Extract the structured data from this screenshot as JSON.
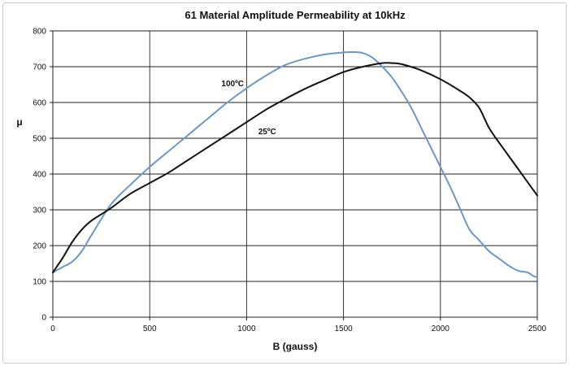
{
  "chart_data": {
    "type": "line",
    "title": "61 Material Amplitude Permeability at 10kHz",
    "xlabel": "B  (gauss)",
    "ylabel": "μ",
    "xlim": [
      0,
      2500
    ],
    "ylim": [
      0,
      800
    ],
    "xticks": [
      0,
      500,
      1000,
      1500,
      2000,
      2500
    ],
    "yticks": [
      0,
      100,
      200,
      300,
      400,
      500,
      600,
      700,
      800
    ],
    "grid": true,
    "series": [
      {
        "name": "100ºC",
        "color": "#6f97c4",
        "x": [
          0,
          50,
          100,
          150,
          200,
          300,
          400,
          500,
          600,
          700,
          800,
          900,
          1000,
          1100,
          1200,
          1300,
          1400,
          1500,
          1550,
          1600,
          1650,
          1700,
          1750,
          1800,
          1850,
          1900,
          1950,
          2000,
          2050,
          2100,
          2150,
          2200,
          2250,
          2300,
          2350,
          2400,
          2450,
          2480,
          2500
        ],
        "y": [
          125,
          140,
          155,
          185,
          230,
          315,
          370,
          420,
          465,
          510,
          555,
          600,
          640,
          675,
          705,
          722,
          734,
          740,
          741,
          738,
          725,
          700,
          670,
          630,
          585,
          530,
          475,
          420,
          365,
          305,
          245,
          215,
          185,
          165,
          145,
          130,
          125,
          115,
          112
        ]
      },
      {
        "name": "25ºC",
        "color": "#111111",
        "x": [
          0,
          50,
          100,
          150,
          200,
          300,
          400,
          500,
          600,
          700,
          800,
          900,
          1000,
          1100,
          1200,
          1300,
          1400,
          1500,
          1600,
          1700,
          1750,
          1800,
          1900,
          2000,
          2100,
          2150,
          2200,
          2250,
          2300,
          2400,
          2500
        ],
        "y": [
          125,
          165,
          210,
          245,
          270,
          305,
          345,
          375,
          405,
          440,
          475,
          510,
          545,
          580,
          610,
          638,
          662,
          685,
          700,
          710,
          710,
          707,
          690,
          665,
          633,
          614,
          585,
          530,
          490,
          415,
          340
        ]
      }
    ],
    "annotations": [
      {
        "text": "100ºC",
        "x": 870,
        "y": 655
      },
      {
        "text": "25ºC",
        "x": 1060,
        "y": 520
      }
    ]
  }
}
